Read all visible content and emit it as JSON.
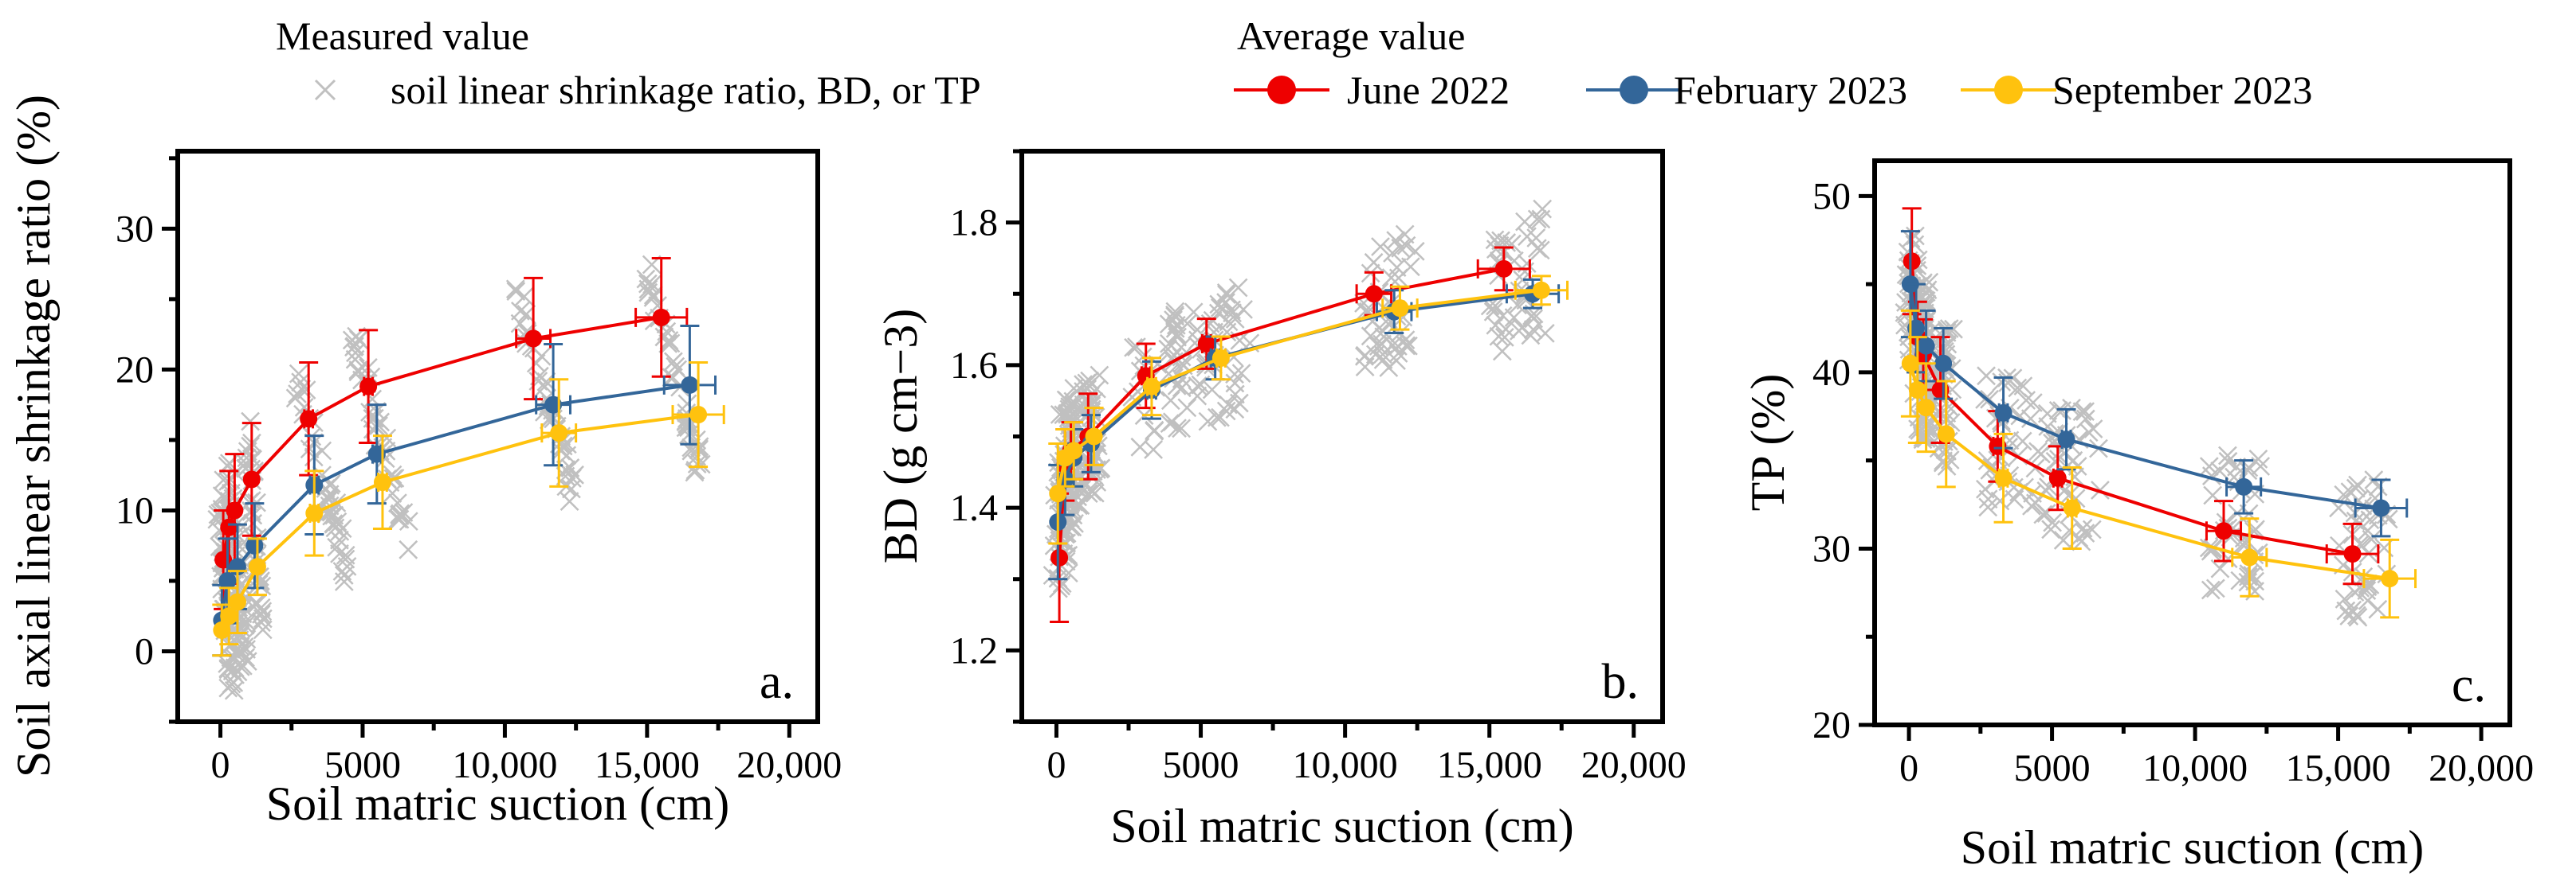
{
  "legend": {
    "measured_title": "Measured value",
    "measured_label": "soil linear shrinkage ratio, BD, or TP",
    "average_title": "Average value",
    "series": [
      "June 2022",
      "February 2023",
      "September 2023"
    ]
  },
  "colors": {
    "June 2022": "#ee0000",
    "February 2023": "#336699",
    "September 2023": "#ffc20e",
    "measured": "#c0c0c0"
  },
  "chart_data": [
    {
      "type": "scatter",
      "panel_label": "a.",
      "xlabel": "Soil matric suction (cm)",
      "ylabel": "Soil axial linear shrinkage ratio (%)",
      "xlim": [
        -1500,
        21000
      ],
      "ylim": [
        -5,
        35.5
      ],
      "xticks": [
        0,
        5000,
        10000,
        15000,
        20000
      ],
      "xtick_labels": [
        "0",
        "5000",
        "10,000",
        "15,000",
        "20,000"
      ],
      "yticks": [
        0,
        10,
        20,
        30
      ],
      "ytick_labels": [
        "0",
        "10",
        "20",
        "30"
      ],
      "series": [
        {
          "name": "June 2022",
          "x": [
            100,
            300,
            500,
            1100,
            3100,
            5200,
            11000,
            15500
          ],
          "y": [
            6.5,
            8.8,
            10,
            12.2,
            16.5,
            18.8,
            22.2,
            23.7
          ],
          "yerr": [
            3.5,
            4,
            4,
            4,
            4,
            4,
            4.3,
            4.2
          ],
          "xerr": [
            0,
            0,
            0,
            0,
            150,
            150,
            600,
            900
          ]
        },
        {
          "name": "February 2023",
          "x": [
            50,
            250,
            600,
            1200,
            3300,
            5500,
            11700,
            16500
          ],
          "y": [
            2.2,
            5,
            6,
            7.5,
            11.8,
            14,
            17.5,
            18.9
          ],
          "yerr": [
            2.5,
            3,
            3,
            3,
            3.5,
            3.5,
            4.3,
            4.2
          ],
          "xerr": [
            0,
            0,
            0,
            0,
            150,
            150,
            600,
            900
          ]
        },
        {
          "name": "September 2023",
          "x": [
            50,
            300,
            600,
            1300,
            3300,
            5700,
            11900,
            16800
          ],
          "y": [
            1.5,
            2.5,
            3.5,
            6,
            9.8,
            12,
            15.5,
            16.8
          ],
          "yerr": [
            1.8,
            2,
            2.2,
            2,
            3,
            3.3,
            3.8,
            3.7
          ],
          "xerr": [
            0,
            0,
            0,
            0,
            150,
            150,
            600,
            900
          ]
        }
      ],
      "measured_spread": 7,
      "measured_slope": -1
    },
    {
      "type": "scatter",
      "panel_label": "b.",
      "xlabel": "Soil matric suction (cm)",
      "ylabel": "BD (g cm−3)",
      "xlim": [
        -1200,
        21000
      ],
      "ylim": [
        1.1,
        1.9
      ],
      "xticks": [
        0,
        5000,
        10000,
        15000,
        20000
      ],
      "xtick_labels": [
        "0",
        "5000",
        "10,000",
        "15,000",
        "20,000"
      ],
      "yticks": [
        1.2,
        1.4,
        1.6,
        1.8
      ],
      "ytick_labels": [
        "1.2",
        "1.4",
        "1.6",
        "1.8"
      ],
      "series": [
        {
          "name": "June 2022",
          "x": [
            100,
            300,
            500,
            1100,
            3100,
            5200,
            11000,
            15500
          ],
          "y": [
            1.33,
            1.46,
            1.48,
            1.5,
            1.585,
            1.63,
            1.7,
            1.735
          ],
          "yerr": [
            0.09,
            0.05,
            0.04,
            0.06,
            0.045,
            0.035,
            0.03,
            0.03
          ],
          "xerr": [
            0,
            0,
            0,
            0,
            150,
            150,
            600,
            900
          ]
        },
        {
          "name": "February 2023",
          "x": [
            50,
            300,
            600,
            1200,
            3300,
            5500,
            11700,
            16500
          ],
          "y": [
            1.38,
            1.44,
            1.47,
            1.49,
            1.565,
            1.61,
            1.675,
            1.7
          ],
          "yerr": [
            0.08,
            0.05,
            0.04,
            0.04,
            0.04,
            0.03,
            0.03,
            0.02
          ],
          "xerr": [
            0,
            0,
            0,
            0,
            150,
            150,
            600,
            900
          ]
        },
        {
          "name": "September 2023",
          "x": [
            50,
            300,
            600,
            1300,
            3300,
            5700,
            11900,
            16800
          ],
          "y": [
            1.42,
            1.47,
            1.48,
            1.5,
            1.57,
            1.61,
            1.68,
            1.705
          ],
          "yerr": [
            0.07,
            0.04,
            0.04,
            0.04,
            0.04,
            0.03,
            0.03,
            0.02
          ],
          "xerr": [
            0,
            0,
            0,
            0,
            150,
            150,
            600,
            900
          ]
        }
      ],
      "measured_spread": 0.09,
      "measured_slope": 0.4
    },
    {
      "type": "scatter",
      "panel_label": "c.",
      "xlabel": "Soil matric suction (cm)",
      "ylabel": "TP (%)",
      "xlim": [
        -1200,
        21000
      ],
      "ylim": [
        20,
        52
      ],
      "xticks": [
        0,
        5000,
        10000,
        15000,
        20000
      ],
      "xtick_labels": [
        "0",
        "5000",
        "10,000",
        "15,000",
        "20,000"
      ],
      "yticks": [
        20,
        30,
        40,
        50
      ],
      "ytick_labels": [
        "20",
        "30",
        "40",
        "50"
      ],
      "series": [
        {
          "name": "June 2022",
          "x": [
            100,
            300,
            500,
            1100,
            3100,
            5200,
            11000,
            15500
          ],
          "y": [
            46.3,
            42,
            41,
            39,
            35.8,
            34,
            31,
            29.7
          ],
          "yerr": [
            3,
            2,
            2,
            3,
            2,
            1.8,
            1.7,
            1.7
          ],
          "xerr": [
            0,
            0,
            0,
            0,
            150,
            150,
            600,
            900
          ]
        },
        {
          "name": "February 2023",
          "x": [
            50,
            250,
            600,
            1200,
            3300,
            5500,
            11700,
            16500
          ],
          "y": [
            45,
            42.5,
            41.5,
            40.5,
            37.7,
            36.2,
            33.5,
            32.3
          ],
          "yerr": [
            3,
            2.5,
            2,
            2,
            2,
            1.7,
            1.5,
            1.6
          ],
          "xerr": [
            0,
            0,
            0,
            0,
            150,
            150,
            600,
            900
          ]
        },
        {
          "name": "September 2023",
          "x": [
            50,
            300,
            600,
            1300,
            3300,
            5700,
            11900,
            16800
          ],
          "y": [
            40.5,
            39,
            38,
            36.5,
            34,
            32.3,
            29.5,
            28.3
          ],
          "yerr": [
            3,
            3,
            2.5,
            3,
            2.5,
            2.3,
            2.2,
            2.2
          ],
          "xerr": [
            0,
            0,
            0,
            0,
            150,
            150,
            600,
            900
          ]
        }
      ],
      "measured_spread": 4,
      "measured_slope": 0
    }
  ]
}
